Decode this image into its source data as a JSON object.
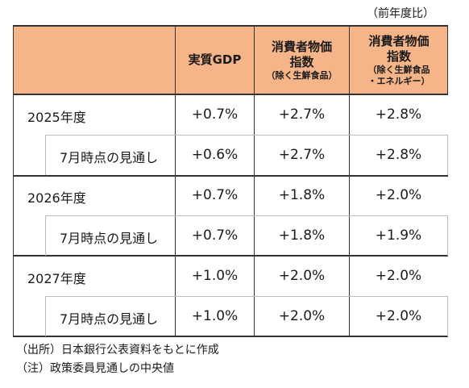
{
  "unit_note": "（前年度比）",
  "headers": {
    "col1": "実質GDP",
    "col2_main": "消費者物価\n指数",
    "col2_sub": "（除く生鮮食品）",
    "col3_main": "消費者物価\n指数",
    "col3_sub": "（除く生鮮食品\n・エネルギー）"
  },
  "rows": [
    {
      "label": "2025年度",
      "gdp": "+0.7%",
      "cpi": "+2.7%",
      "core": "+2.8%"
    },
    {
      "label": "7月時点の見通し",
      "gdp": "+0.6%",
      "cpi": "+2.7%",
      "core": "+2.8%"
    },
    {
      "label": "2026年度",
      "gdp": "+0.7%",
      "cpi": "+1.8%",
      "core": "+2.0%"
    },
    {
      "label": "7月時点の見通し",
      "gdp": "+0.7%",
      "cpi": "+1.8%",
      "core": "+1.9%"
    },
    {
      "label": "2027年度",
      "gdp": "+1.0%",
      "cpi": "+2.0%",
      "core": "+2.0%"
    },
    {
      "label": "7月時点の見通し",
      "gdp": "+1.0%",
      "cpi": "+2.0%",
      "core": "+2.0%"
    }
  ],
  "footnotes": {
    "source": "（出所）日本銀行公表資料をもとに作成",
    "note": "（注）政策委員見通しの中央値"
  }
}
